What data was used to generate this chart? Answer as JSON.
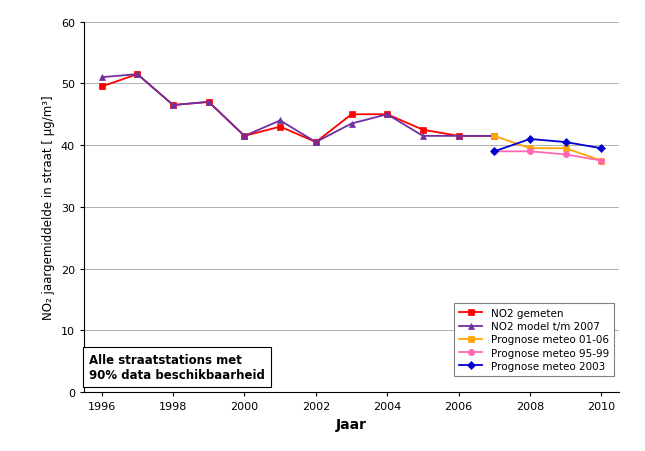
{
  "title": "",
  "xlabel": "Jaar",
  "ylabel": "NO₂ jaargemiddelde in straat [ µg/m³]",
  "xlim": [
    1995.5,
    2010.5
  ],
  "ylim": [
    0,
    60
  ],
  "yticks": [
    0,
    10,
    20,
    30,
    40,
    50,
    60
  ],
  "xticks": [
    1996,
    1998,
    2000,
    2002,
    2004,
    2006,
    2008,
    2010
  ],
  "series": {
    "NO2_gemeten": {
      "years": [
        1996,
        1997,
        1998,
        1999,
        2000,
        2001,
        2002,
        2003,
        2004,
        2005,
        2006,
        2007
      ],
      "values": [
        49.5,
        51.5,
        46.5,
        47.0,
        41.5,
        43.0,
        40.5,
        45.0,
        45.0,
        42.5,
        41.5,
        41.5
      ],
      "color": "#ff0000",
      "marker": "s",
      "label": "NO2 gemeten"
    },
    "NO2_model": {
      "years": [
        1996,
        1997,
        1998,
        1999,
        2000,
        2001,
        2002,
        2003,
        2004,
        2005,
        2006,
        2007
      ],
      "values": [
        51.0,
        51.5,
        46.5,
        47.0,
        41.5,
        44.0,
        40.5,
        43.5,
        45.0,
        41.5,
        41.5,
        41.5
      ],
      "color": "#7030a0",
      "marker": "^",
      "label": "NO2 model t/m 2007"
    },
    "prognose_0106": {
      "years": [
        2007,
        2008,
        2009,
        2010
      ],
      "values": [
        41.5,
        39.5,
        39.5,
        37.5
      ],
      "color": "#ffa500",
      "marker": "s",
      "label": "Prognose meteo 01-06"
    },
    "prognose_9599": {
      "years": [
        2007,
        2008,
        2009,
        2010
      ],
      "values": [
        39.0,
        39.0,
        38.5,
        37.5
      ],
      "color": "#ff69b4",
      "marker": "o",
      "label": "Prognose meteo 95-99"
    },
    "prognose_2003": {
      "years": [
        2007,
        2008,
        2009,
        2010
      ],
      "values": [
        39.0,
        41.0,
        40.5,
        39.5
      ],
      "color": "#0000cd",
      "marker": "D",
      "label": "Prognose meteo 2003"
    }
  },
  "annotation_text": "Alle straatstations met\n90% data beschikbaarheid",
  "background_color": "#ffffff",
  "grid_color": "#b0b0b0"
}
